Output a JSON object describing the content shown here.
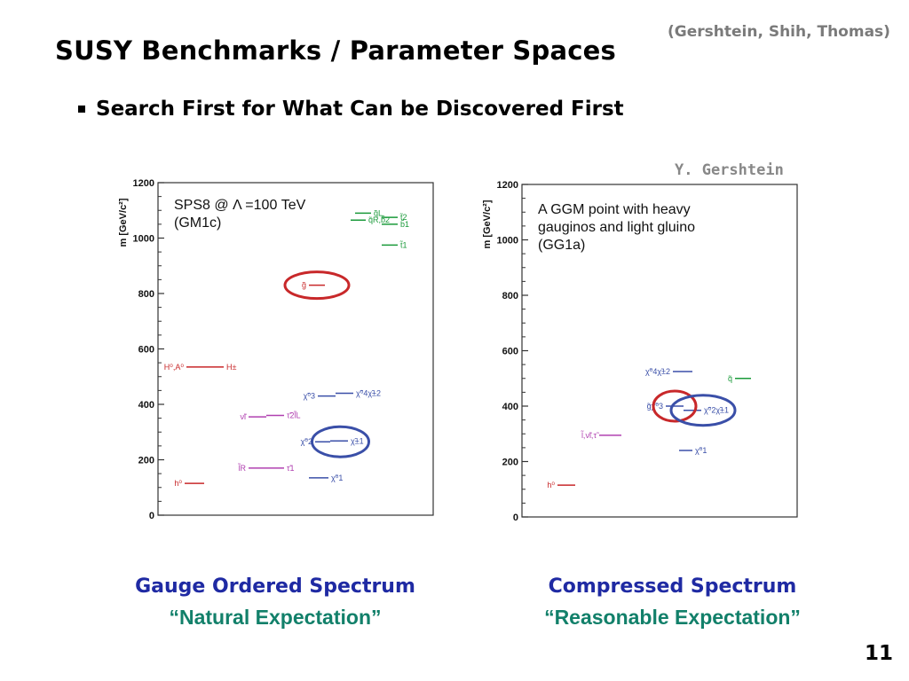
{
  "slide": {
    "title": "SUSY Benchmarks / Parameter Spaces",
    "citation": "(Gershtein, Shih, Thomas)",
    "bullet": "Search First for What Can be Discovered First",
    "credit": "Y. Gershtein",
    "page_number": "11",
    "captions": [
      {
        "line1": "Gauge Ordered Spectrum",
        "line2": "“Natural Expectation”"
      },
      {
        "line1": "Compressed Spectrum",
        "line2": "“Reasonable Expectation”"
      }
    ]
  },
  "colors": {
    "red": "#c8282a",
    "blue": "#3a4fa8",
    "green": "#1a9a3a",
    "magenta": "#b040b0",
    "caption_blue": "#1f2aa3",
    "caption_teal": "#12806a"
  },
  "chart_data": [
    {
      "type": "scatter",
      "title": "",
      "annotation": [
        "SPS8 @ Λ =100 TeV",
        "(GM1c)"
      ],
      "ylabel": "m [GeV/c²]",
      "ylim": [
        0,
        1200
      ],
      "yticks": [
        0,
        200,
        400,
        600,
        800,
        1000,
        1200
      ],
      "levels": [
        {
          "label": "q̃L",
          "mass": 1090,
          "color": "green",
          "pos": "right"
        },
        {
          "label": "q̃R,b̃2",
          "mass": 1065,
          "color": "green",
          "pos": "right"
        },
        {
          "label": "t̃2",
          "mass": 1075,
          "color": "green",
          "pos": "right"
        },
        {
          "label": "b̃1",
          "mass": 1050,
          "color": "green",
          "pos": "right"
        },
        {
          "label": "t̃1",
          "mass": 975,
          "color": "green",
          "pos": "right"
        },
        {
          "label": "g̃",
          "mass": 830,
          "color": "red",
          "pos": "left"
        },
        {
          "label": "H⁰,A⁰",
          "mass": 535,
          "color": "red",
          "pos": "left"
        },
        {
          "label": "H±",
          "mass": 535,
          "color": "red",
          "pos": "right"
        },
        {
          "label": "χ̃⁰3",
          "mass": 430,
          "color": "blue",
          "pos": "left"
        },
        {
          "label": "χ̃⁰4χ̃±2",
          "mass": 440,
          "color": "blue",
          "pos": "right"
        },
        {
          "label": "ν̃l",
          "mass": 355,
          "color": "magenta",
          "pos": "left"
        },
        {
          "label": "τ̃2l̃L",
          "mass": 360,
          "color": "magenta",
          "pos": "right"
        },
        {
          "label": "χ̃⁰2",
          "mass": 265,
          "color": "blue",
          "pos": "left"
        },
        {
          "label": "χ̃±1",
          "mass": 268,
          "color": "blue",
          "pos": "right"
        },
        {
          "label": "l̃R",
          "mass": 170,
          "color": "magenta",
          "pos": "left"
        },
        {
          "label": "τ̃1",
          "mass": 170,
          "color": "magenta",
          "pos": "right"
        },
        {
          "label": "χ̃⁰1",
          "mass": 135,
          "color": "blue",
          "pos": "right"
        },
        {
          "label": "h⁰",
          "mass": 115,
          "color": "red",
          "pos": "left"
        }
      ],
      "highlights": [
        {
          "label": "g̃",
          "color": "red"
        },
        {
          "label": "χ̃⁰2 χ̃±1",
          "color": "blue"
        }
      ]
    },
    {
      "type": "scatter",
      "title": "",
      "annotation": [
        "A GGM point with heavy",
        "gauginos and light gluino",
        "(GG1a)"
      ],
      "ylabel": "m [GeV/c²]",
      "ylim": [
        0,
        1200
      ],
      "yticks": [
        0,
        200,
        400,
        600,
        800,
        1000,
        1200
      ],
      "levels": [
        {
          "label": "χ̃⁰4χ̃±2",
          "mass": 525,
          "color": "blue",
          "pos": "left"
        },
        {
          "label": "q̃",
          "mass": 500,
          "color": "green",
          "pos": "left"
        },
        {
          "label": "g̃χ̃⁰3",
          "mass": 400,
          "color": "blue",
          "pos": "left"
        },
        {
          "label": "χ̃⁰2χ̃±1",
          "mass": 385,
          "color": "blue",
          "pos": "right"
        },
        {
          "label": "l̃,ν̃l,τ̃",
          "mass": 295,
          "color": "magenta",
          "pos": "left"
        },
        {
          "label": "χ̃⁰1",
          "mass": 240,
          "color": "blue",
          "pos": "right"
        },
        {
          "label": "h⁰",
          "mass": 115,
          "color": "red",
          "pos": "left"
        }
      ],
      "highlights": [
        {
          "label": "g̃χ̃⁰3",
          "color": "red"
        },
        {
          "label": "χ̃⁰2χ̃±1",
          "color": "blue"
        }
      ]
    }
  ]
}
